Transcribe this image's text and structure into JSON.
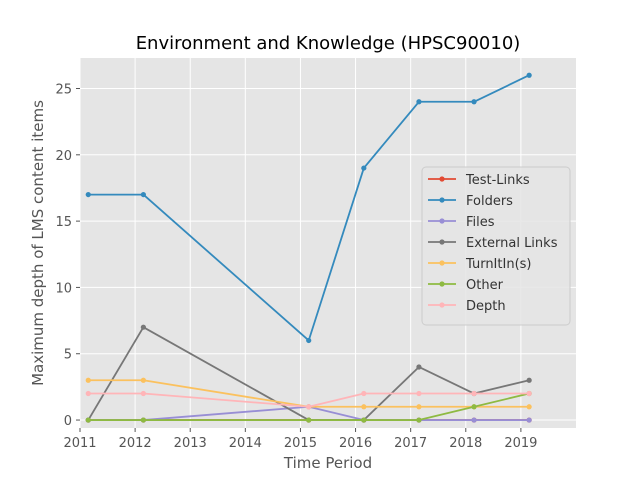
{
  "chart_data": {
    "type": "line",
    "title": "Environment and Knowledge (HPSC90010)",
    "xlabel": "Time Period",
    "ylabel": "Maximum depth of LMS content items",
    "xlim": [
      2011,
      2020
    ],
    "ylim": [
      -0.6,
      27.3
    ],
    "x_ticks": [
      2011,
      2012,
      2013,
      2014,
      2015,
      2016,
      2017,
      2018,
      2019
    ],
    "y_ticks": [
      0,
      5,
      10,
      15,
      20,
      25
    ],
    "grid": true,
    "legend_position": "center-right",
    "x": [
      2011.15,
      2012.15,
      2015.15,
      2016.15,
      2017.15,
      2018.15,
      2019.15
    ],
    "series": [
      {
        "name": "Test-Links",
        "color": "#E24A33",
        "values": [
          0,
          0,
          0,
          0,
          0,
          0,
          0
        ]
      },
      {
        "name": "Folders",
        "color": "#348ABD",
        "values": [
          17,
          17,
          6,
          19,
          24,
          24,
          26
        ]
      },
      {
        "name": "Files",
        "color": "#988ED5",
        "values": [
          0,
          0,
          1,
          0,
          0,
          0,
          0
        ]
      },
      {
        "name": "External Links",
        "color": "#777777",
        "values": [
          0,
          7,
          0,
          0,
          4,
          2,
          3
        ]
      },
      {
        "name": "TurnItIn(s)",
        "color": "#FBC15E",
        "values": [
          3,
          3,
          1,
          1,
          1,
          1,
          1
        ]
      },
      {
        "name": "Other",
        "color": "#8EBA42",
        "values": [
          0,
          0,
          0,
          0,
          0,
          1,
          2
        ]
      },
      {
        "name": "Depth",
        "color": "#FFB5B8",
        "values": [
          2,
          2,
          1,
          2,
          2,
          2,
          2
        ]
      }
    ]
  }
}
